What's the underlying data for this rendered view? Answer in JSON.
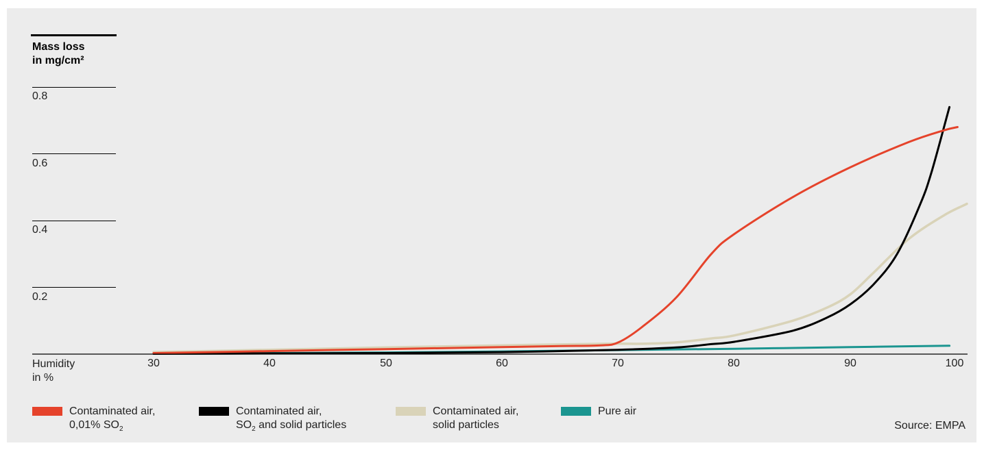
{
  "chart_data": {
    "type": "line",
    "ylabel_line1": "Mass loss",
    "ylabel_line2": "in mg/cm²",
    "xlabel_line1": "Humidity",
    "xlabel_line2": "in %",
    "xlim": [
      30,
      100
    ],
    "ylim": [
      0,
      0.8
    ],
    "x_ticks": [
      "30",
      "40",
      "50",
      "60",
      "70",
      "80",
      "90",
      "100"
    ],
    "y_ticks": [
      "0.8",
      "0.6",
      "0.4",
      "0.2"
    ],
    "grid": false,
    "legend_position": "bottom",
    "series": [
      {
        "name": "Contaminated air, 0,01% SO2",
        "color": "#e5432b",
        "x": [
          30,
          40,
          50,
          60,
          65,
          68.5,
          70,
          72,
          75,
          78,
          80,
          85,
          90,
          95,
          98,
          99.2
        ],
        "y": [
          0.003,
          0.009,
          0.015,
          0.021,
          0.024,
          0.026,
          0.035,
          0.08,
          0.17,
          0.3,
          0.36,
          0.47,
          0.56,
          0.635,
          0.67,
          0.68
        ]
      },
      {
        "name": "Contaminated air, SO2 and solid particles",
        "color": "#000000",
        "x": [
          30,
          40,
          50,
          60,
          70,
          75,
          78,
          80,
          85,
          88,
          90,
          92,
          94,
          96,
          97,
          98.5
        ],
        "y": [
          0.001,
          0.002,
          0.003,
          0.006,
          0.013,
          0.02,
          0.03,
          0.037,
          0.07,
          0.11,
          0.15,
          0.21,
          0.3,
          0.45,
          0.55,
          0.74
        ]
      },
      {
        "name": "Contaminated air, solid particles",
        "color": "#d9d3b8",
        "x": [
          30,
          40,
          50,
          60,
          69,
          72,
          75,
          78,
          80,
          85,
          88,
          90,
          92,
          95,
          98,
          100
        ],
        "y": [
          0.006,
          0.013,
          0.02,
          0.026,
          0.031,
          0.031,
          0.035,
          0.047,
          0.056,
          0.1,
          0.14,
          0.18,
          0.245,
          0.345,
          0.415,
          0.45
        ]
      },
      {
        "name": "Pure air",
        "color": "#1b9590",
        "x": [
          30,
          40,
          50,
          60,
          70,
          80,
          90,
          98.5
        ],
        "y": [
          0.001,
          0.003,
          0.005,
          0.008,
          0.012,
          0.016,
          0.021,
          0.025
        ]
      }
    ]
  },
  "legend": [
    {
      "line1": "Contaminated air,",
      "line2_pre": "0,01% SO",
      "line2_sub": "2",
      "line2_post": "",
      "color": "#e5432b"
    },
    {
      "line1": "Contaminated air,",
      "line2_pre": "SO",
      "line2_sub": "2",
      "line2_post": " and solid particles",
      "color": "#000000"
    },
    {
      "line1": "Contaminated air,",
      "line2_pre": "solid particles",
      "line2_sub": "",
      "line2_post": "",
      "color": "#d9d3b8"
    },
    {
      "line1": "Pure air",
      "line2_pre": "",
      "line2_sub": "",
      "line2_post": "",
      "color": "#1b9590"
    }
  ],
  "source": "Source: EMPA"
}
